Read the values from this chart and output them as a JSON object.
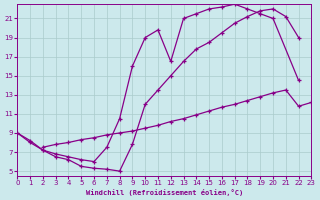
{
  "xlabel": "Windchill (Refroidissement éolien,°C)",
  "bg_color": "#cce9ec",
  "grid_color": "#aacccc",
  "line_color": "#880088",
  "xmin": 0,
  "xmax": 23,
  "ymin": 4.5,
  "ymax": 22.5,
  "yticks": [
    5,
    7,
    9,
    11,
    13,
    15,
    17,
    19,
    21
  ],
  "xticks": [
    0,
    1,
    2,
    3,
    4,
    5,
    6,
    7,
    8,
    9,
    10,
    11,
    12,
    13,
    14,
    15,
    16,
    17,
    18,
    19,
    20,
    21,
    22,
    23
  ],
  "curve1_x": [
    0,
    1,
    2,
    3,
    4,
    5,
    6,
    7,
    8,
    9,
    10,
    11,
    12,
    13,
    14,
    15,
    16,
    17,
    18,
    19,
    20,
    22
  ],
  "curve1_y": [
    9,
    8.2,
    7.2,
    6.8,
    6.5,
    6.2,
    6.0,
    7.5,
    10.5,
    16.0,
    19.0,
    19.8,
    16.5,
    21.0,
    21.5,
    22.0,
    22.2,
    22.5,
    22.0,
    21.5,
    21.0,
    14.5
  ],
  "curve2_x": [
    2,
    3,
    4,
    5,
    6,
    7,
    8,
    9,
    10,
    11,
    12,
    13,
    14,
    15,
    16,
    17,
    18,
    19,
    20,
    21,
    22,
    23
  ],
  "curve2_y": [
    7.5,
    7.8,
    8.0,
    8.3,
    8.5,
    8.8,
    9.0,
    9.2,
    9.5,
    9.8,
    10.2,
    10.5,
    10.9,
    11.3,
    11.7,
    12.0,
    12.4,
    12.8,
    13.2,
    13.5,
    11.8,
    12.2
  ],
  "curve3_x": [
    0,
    1,
    2,
    3,
    4,
    5,
    6,
    7,
    8,
    9,
    10,
    11,
    12,
    13,
    14,
    15,
    16,
    17,
    18,
    19,
    20,
    21,
    22
  ],
  "curve3_y": [
    9,
    8.0,
    7.2,
    6.5,
    6.2,
    5.5,
    5.3,
    5.2,
    5.0,
    7.8,
    12.0,
    13.5,
    15.0,
    16.5,
    17.8,
    18.5,
    19.5,
    20.5,
    21.2,
    21.8,
    22.0,
    21.2,
    19.0
  ]
}
